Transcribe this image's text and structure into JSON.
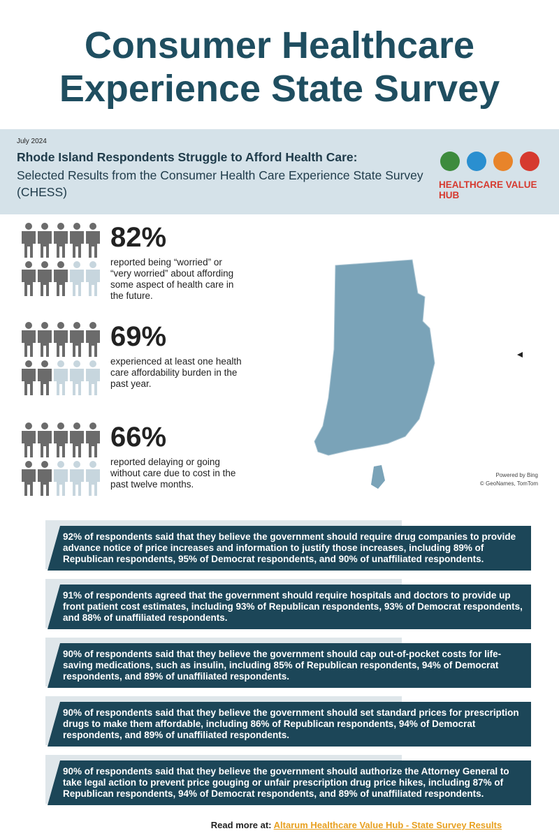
{
  "header": {
    "title_lines": [
      "Consumer Healthcare",
      "Experience State Survey"
    ]
  },
  "banner": {
    "date": "July 2024",
    "headline": "Rhode Island Respondents Struggle to Afford Health Care:",
    "subtitle": "Selected Results from the Consumer Health Care Experience State Survey (CHESS)",
    "logo_text": "HEALTHCARE VALUE HUB"
  },
  "stats": [
    {
      "percent": 82,
      "percent_label": "82%",
      "text": "reported being “worried” or “very worried” about affording some aspect of health care in the future."
    },
    {
      "percent": 69,
      "percent_label": "69%",
      "text": "experienced at least one health care affordability burden in the past year."
    },
    {
      "percent": 66,
      "percent_label": "66%",
      "text": "reported delaying or going without care due to cost in the past twelve months."
    }
  ],
  "map": {
    "credit_lines": [
      "Powered by Bing",
      "© GeoNames, TomTom"
    ]
  },
  "findings": [
    "92% of respondents said that they believe the government should require drug companies to provide advance notice of price increases and information to justify those increases, including 89% of Republican respondents, 95% of Democrat respondents, and 90% of unaffiliated respondents.",
    "91% of respondents agreed that the government should require hospitals and doctors to provide up front patient cost estimates, including 93% of Republican respondents, 93% of Democrat respondents, and 88% of unaffiliated respondents.",
    "90% of respondents said that they believe the government should cap out-of-pocket costs for life-saving medications, such as insulin, including 85% of Republican respondents, 94% of Democrat respondents, and 89% of unaffiliated respondents.",
    "90% of respondents said that they believe the government should set standard prices for prescription drugs to make them affordable, including 86% of Republican respondents, 94% of Democrat respondents, and 89% of unaffiliated respondents.",
    "90% of respondents said that they believe the government should authorize the Attorney General to take legal action to prevent price gouging or unfair prescription drug price hikes, including 87% of Republican respondents, 94% of Democrat respondents, and 89% of unaffiliated respondents."
  ],
  "footer": {
    "lead": "Read more at:",
    "link": "Altarum Healthcare Value Hub - State Survey Results"
  }
}
